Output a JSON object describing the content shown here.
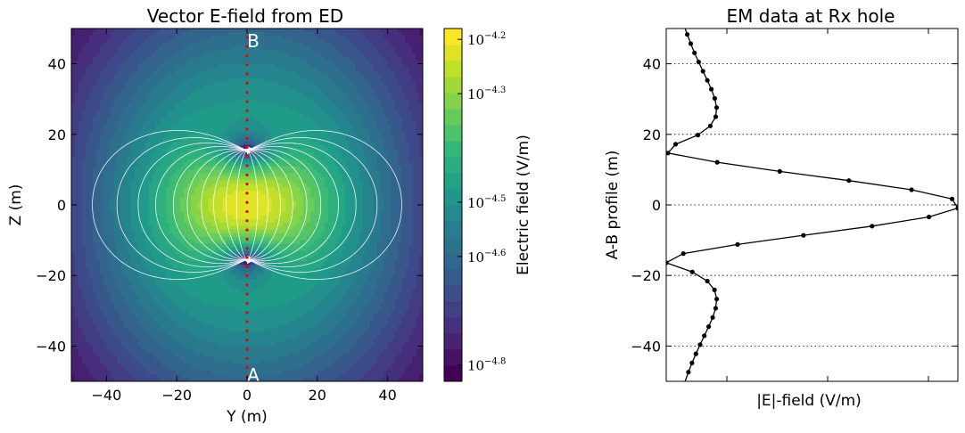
{
  "chart_data": [
    {
      "type": "heatmap",
      "title": "Vector E-field from ED",
      "xlabel": "Y (m)",
      "ylabel": "Z (m)",
      "xlim": [
        -50,
        50
      ],
      "ylim": [
        -50,
        50
      ],
      "xticks": [
        "−40",
        "−20",
        "0",
        "20",
        "40"
      ],
      "yticks": [
        "40",
        "20",
        "0",
        "−20",
        "−40"
      ],
      "field": "log10 |E| of an electric dipole aligned with Z, centred at origin",
      "colormap": "viridis",
      "color_low": "#440154",
      "color_high": "#fde725",
      "streamlines": "white",
      "profile": {
        "color": "#e8000b",
        "y": 0,
        "z_from": -50,
        "z_to": 50,
        "start_label": "A",
        "end_label": "B"
      },
      "colorbar": {
        "label": "Electric field (V/m)",
        "range_log10": [
          -4.83,
          -4.18
        ],
        "ticks": [
          {
            "base": "10",
            "exp": "−4.2",
            "value": -4.2
          },
          {
            "base": "10",
            "exp": "−4.3",
            "value": -4.3
          },
          {
            "base": "10",
            "exp": "−4.5",
            "value": -4.5
          },
          {
            "base": "10",
            "exp": "−4.6",
            "value": -4.6
          },
          {
            "base": "10",
            "exp": "−4.8",
            "value": -4.8
          }
        ]
      }
    },
    {
      "type": "line",
      "title": "EM data at Rx hole",
      "xlabel": "|E|-field (V/m)",
      "ylabel": "A-B profile (m)",
      "ylim": [
        -50,
        50
      ],
      "yticks": [
        "40",
        "20",
        "0",
        "−20",
        "−40"
      ],
      "grid": "horizontal dotted",
      "series": [
        {
          "color": "#000000",
          "marker": "dot",
          "z": [
            -50,
            -47.4,
            -44.8,
            -42.2,
            -39.6,
            -37.1,
            -34.5,
            -31.9,
            -29.3,
            -26.7,
            -24.1,
            -21.6,
            -19.0,
            -16.4,
            -13.8,
            -11.2,
            -8.6,
            -6.0,
            -3.4,
            -0.9,
            1.7,
            4.3,
            6.9,
            9.5,
            12.1,
            14.7,
            17.2,
            19.8,
            22.4,
            25.0,
            27.6,
            30.2,
            32.8,
            35.3,
            37.9,
            40.5,
            43.1,
            45.7,
            48.3,
            50
          ]
        }
      ]
    }
  ]
}
